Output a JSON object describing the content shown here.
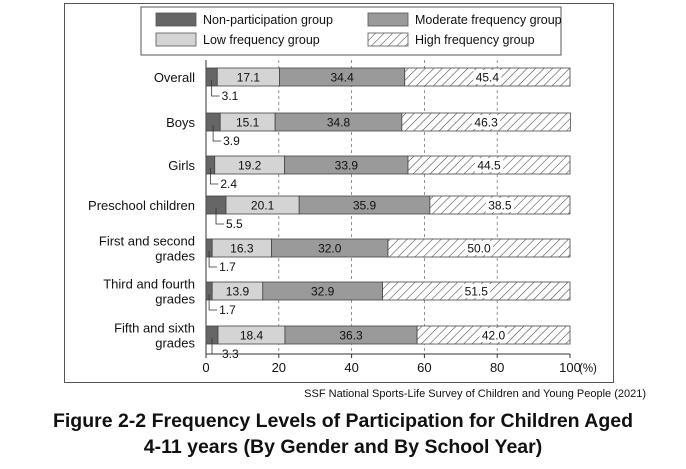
{
  "chart_data": {
    "type": "bar",
    "orientation": "horizontal",
    "stacked": true,
    "categories": [
      [
        "Overall"
      ],
      [
        "Boys"
      ],
      [
        "Girls"
      ],
      [
        "Preschool children"
      ],
      [
        "First and second",
        "grades"
      ],
      [
        "Third and fourth",
        "grades"
      ],
      [
        "Fifth and sixth",
        "grades"
      ]
    ],
    "series": [
      {
        "name": "Non-participation group",
        "values": [
          3.1,
          3.9,
          2.4,
          5.5,
          1.7,
          1.7,
          3.3
        ],
        "color": "#666666",
        "pattern": "solid"
      },
      {
        "name": "Low frequency group",
        "values": [
          17.1,
          15.1,
          19.2,
          20.1,
          16.3,
          13.9,
          18.4
        ],
        "color": "#d4d4d4",
        "pattern": "solid"
      },
      {
        "name": "Moderate frequency group",
        "values": [
          34.4,
          34.8,
          33.9,
          35.9,
          32.0,
          32.9,
          36.3
        ],
        "color": "#9a9a9a",
        "pattern": "solid"
      },
      {
        "name": "High frequency group",
        "values": [
          45.4,
          46.3,
          44.5,
          38.5,
          50.0,
          51.5,
          42.0
        ],
        "color": "#ffffff",
        "pattern": "diagonal-hatch"
      }
    ],
    "value_labels": [
      [
        "3.1",
        "17.1",
        "34.4",
        "45.4"
      ],
      [
        "3.9",
        "15.1",
        "34.8",
        "46.3"
      ],
      [
        "2.4",
        "19.2",
        "33.9",
        "44.5"
      ],
      [
        "5.5",
        "20.1",
        "35.9",
        "38.5"
      ],
      [
        "1.7",
        "16.3",
        "32.0",
        "50.0"
      ],
      [
        "1.7",
        "13.9",
        "32.9",
        "51.5"
      ],
      [
        "3.3",
        "18.4",
        "36.3",
        "42.0"
      ]
    ],
    "xlim": [
      0,
      100
    ],
    "xticks": [
      "0",
      "20",
      "40",
      "60",
      "80",
      "100"
    ],
    "x_unit": "(%)",
    "grid": "vertical dashed at 20, 40, 60, 80",
    "legend_position": "top"
  },
  "source": "SSF National Sports-Life Survey of Children and Young People (2021)",
  "figure_title": [
    "Figure 2-2  Frequency Levels of Participation for Children Aged",
    "4-11 years (By Gender and By School Year)"
  ]
}
